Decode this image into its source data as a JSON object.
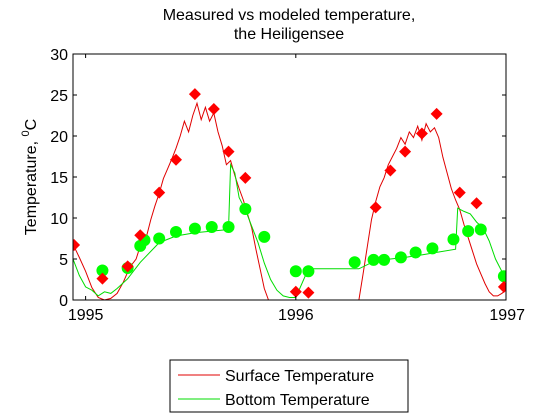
{
  "chart_data": {
    "type": "line",
    "title_line1": "Measured vs modeled temperature,",
    "title_line2": "the Heiligensee",
    "ylabel": "Temperature, ",
    "ylabel_sup": "0",
    "ylabel_unit": "C",
    "xlabel": "",
    "xlim": [
      1994.94,
      1997.0
    ],
    "ylim": [
      0,
      30
    ],
    "grid": false,
    "legend_position": "bottom-center, outside plot",
    "x_ticks": [
      1995,
      1996,
      1997
    ],
    "x_tick_labels": [
      "1995",
      "1996",
      "1997"
    ],
    "y_ticks": [
      0,
      5,
      10,
      15,
      20,
      25,
      30
    ],
    "y_tick_labels": [
      "0",
      "5",
      "10",
      "15",
      "20",
      "25",
      "30"
    ],
    "colors": {
      "surface": "#e00000",
      "bottom": "#00dd00",
      "surface_marker": "#ff0000",
      "bottom_marker": "#00ff00"
    },
    "series": [
      {
        "name": "Surface Temperature",
        "kind": "line",
        "x": [
          1994.94,
          1994.97,
          1995.0,
          1995.03,
          1995.06,
          1995.09,
          1995.12,
          1995.15,
          1995.18,
          1995.21,
          1995.24,
          1995.26,
          1995.29,
          1995.31,
          1995.33,
          1995.35,
          1995.37,
          1995.39,
          1995.41,
          1995.43,
          1995.45,
          1995.47,
          1995.49,
          1995.51,
          1995.53,
          1995.55,
          1995.57,
          1995.59,
          1995.61,
          1995.63,
          1995.65,
          1995.67,
          1995.69,
          1995.71,
          1995.73,
          1995.75,
          1995.77,
          1995.79,
          1995.81,
          1995.83,
          1995.85,
          1995.87,
          1995.9,
          1995.93,
          1996.3,
          1996.32,
          1996.34,
          1996.36,
          1996.38,
          1996.4,
          1996.42,
          1996.44,
          1996.46,
          1996.48,
          1996.5,
          1996.52,
          1996.54,
          1996.56,
          1996.58,
          1996.6,
          1996.62,
          1996.64,
          1996.66,
          1996.68,
          1996.7,
          1996.72,
          1996.74,
          1996.76,
          1996.78,
          1996.8,
          1996.82,
          1996.84,
          1996.86,
          1996.88,
          1996.9,
          1996.92,
          1996.94,
          1996.96,
          1996.98,
          1997.0
        ],
        "values": [
          6.8,
          5.2,
          3.5,
          1.5,
          0.3,
          0.0,
          0.2,
          0.8,
          2.2,
          4.0,
          5.0,
          6.6,
          7.8,
          9.8,
          11.5,
          13.0,
          14.8,
          16.0,
          17.2,
          18.5,
          20.0,
          21.8,
          20.5,
          22.5,
          24.0,
          22.0,
          23.5,
          21.8,
          22.8,
          20.5,
          18.8,
          16.5,
          17.0,
          15.2,
          13.6,
          12.2,
          10.5,
          8.8,
          6.2,
          3.8,
          1.4,
          0.0,
          0.0,
          0.0,
          0.0,
          3.2,
          6.5,
          9.8,
          12.0,
          13.8,
          14.9,
          16.5,
          17.5,
          18.5,
          19.8,
          19.0,
          20.5,
          19.8,
          21.2,
          19.5,
          21.5,
          20.5,
          21.0,
          19.8,
          17.4,
          15.5,
          13.6,
          12.2,
          11.0,
          9.2,
          7.6,
          6.0,
          4.4,
          3.2,
          2.0,
          1.0,
          0.5,
          0.5,
          0.8,
          1.2
        ]
      },
      {
        "name": "Surface Temperature (measured)",
        "kind": "marker-diamond",
        "x": [
          1994.945,
          1995.08,
          1995.2,
          1995.26,
          1995.35,
          1995.43,
          1995.52,
          1995.61,
          1995.68,
          1995.76,
          1996.0,
          1996.06,
          1996.38,
          1996.45,
          1996.52,
          1996.6,
          1996.67,
          1996.78,
          1996.86,
          1996.99
        ],
        "values": [
          6.7,
          2.6,
          4.1,
          7.9,
          13.1,
          17.1,
          25.1,
          23.3,
          18.1,
          14.9,
          1.0,
          0.9,
          11.3,
          15.8,
          18.1,
          20.3,
          22.7,
          13.1,
          11.8,
          1.6
        ]
      },
      {
        "name": "Bottom Temperature",
        "kind": "line",
        "x": [
          1994.94,
          1994.97,
          1995.0,
          1995.03,
          1995.06,
          1995.09,
          1995.12,
          1995.15,
          1995.2,
          1995.26,
          1995.35,
          1995.43,
          1995.52,
          1995.6,
          1995.68,
          1995.69,
          1995.71,
          1995.73,
          1995.76,
          1995.79,
          1995.82,
          1995.85,
          1995.88,
          1995.91,
          1995.94,
          1995.97,
          1996.0,
          1996.06,
          1996.2,
          1996.26,
          1996.3,
          1996.38,
          1996.45,
          1996.52,
          1996.6,
          1996.67,
          1996.76,
          1996.77,
          1996.8,
          1996.83,
          1996.86,
          1996.89,
          1996.92,
          1996.95,
          1996.98,
          1997.0
        ],
        "values": [
          5.0,
          3.0,
          1.6,
          1.2,
          0.5,
          1.0,
          0.8,
          1.4,
          2.6,
          4.6,
          7.0,
          7.8,
          8.2,
          8.4,
          8.6,
          16.5,
          15.5,
          12.5,
          11.0,
          9.0,
          7.0,
          4.5,
          2.5,
          1.2,
          0.5,
          0.3,
          0.3,
          3.8,
          3.8,
          3.8,
          3.8,
          4.8,
          5.0,
          5.2,
          5.5,
          5.8,
          6.2,
          11.2,
          10.8,
          10.5,
          9.5,
          8.8,
          7.2,
          5.0,
          3.5,
          2.8
        ]
      },
      {
        "name": "Bottom Temperature (measured)",
        "kind": "marker-circle",
        "x": [
          1995.08,
          1995.2,
          1995.26,
          1995.28,
          1995.35,
          1995.43,
          1995.52,
          1995.6,
          1995.68,
          1995.76,
          1995.85,
          1996.0,
          1996.06,
          1996.28,
          1996.37,
          1996.42,
          1996.5,
          1996.57,
          1996.65,
          1996.75,
          1996.82,
          1996.88,
          1996.99
        ],
        "values": [
          3.6,
          3.9,
          6.6,
          7.3,
          7.5,
          8.3,
          8.7,
          8.9,
          8.9,
          11.1,
          7.7,
          3.5,
          3.5,
          4.6,
          4.9,
          4.9,
          5.2,
          5.8,
          6.3,
          7.4,
          8.4,
          8.6,
          2.9
        ]
      }
    ]
  }
}
